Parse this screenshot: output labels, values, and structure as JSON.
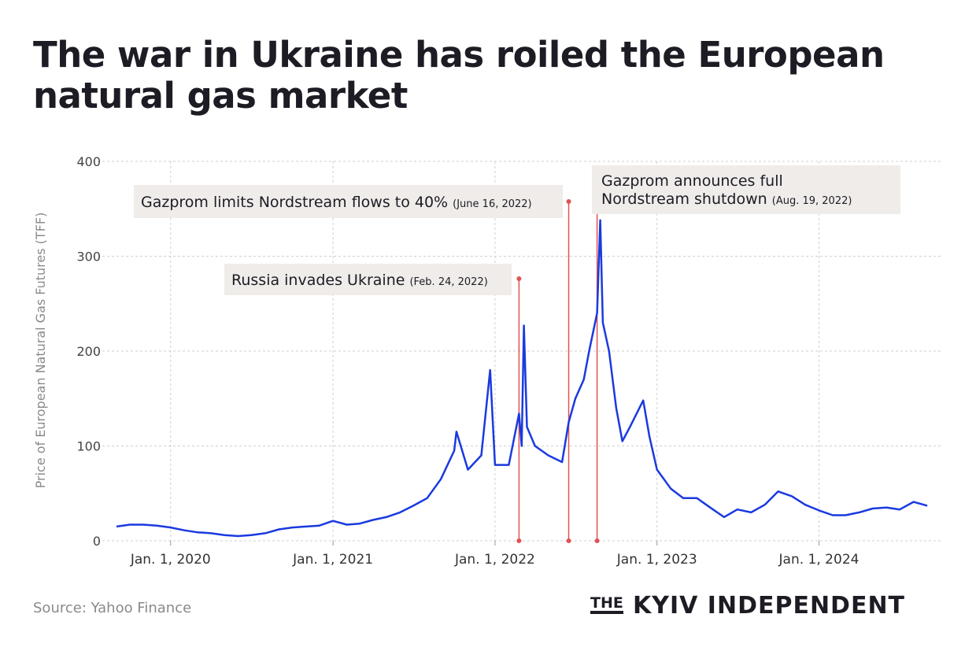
{
  "title": "The war in Ukraine has roiled the European natural gas market",
  "source": "Source: Yahoo Finance",
  "brand": {
    "prefix": "THE",
    "name": "KYIV INDEPENDENT"
  },
  "colors": {
    "line": "#1a3adf",
    "annotation": "#e05252",
    "grid": "#cfcfcf",
    "label_bg": "#efecea"
  },
  "chart_data": {
    "type": "line",
    "ylabel": "Price of European Natural Gas Futures (TFF)",
    "xlabel": "",
    "ylim": [
      0,
      400
    ],
    "yticks": [
      0,
      100,
      200,
      300,
      400
    ],
    "xlim": [
      "2019-09-01",
      "2024-10-01"
    ],
    "xticks": [
      {
        "date": "2020-01-01",
        "label": "Jan. 1, 2020"
      },
      {
        "date": "2021-01-01",
        "label": "Jan. 1, 2021"
      },
      {
        "date": "2022-01-01",
        "label": "Jan. 1, 2022"
      },
      {
        "date": "2023-01-01",
        "label": "Jan. 1, 2023"
      },
      {
        "date": "2024-01-01",
        "label": "Jan. 1, 2024"
      }
    ],
    "grid": true,
    "series": [
      {
        "points": [
          [
            "2019-09-01",
            15
          ],
          [
            "2019-10-01",
            17
          ],
          [
            "2019-11-01",
            17
          ],
          [
            "2019-12-01",
            16
          ],
          [
            "2020-01-01",
            14
          ],
          [
            "2020-02-01",
            11
          ],
          [
            "2020-03-01",
            9
          ],
          [
            "2020-04-01",
            8
          ],
          [
            "2020-05-01",
            6
          ],
          [
            "2020-06-01",
            5
          ],
          [
            "2020-07-01",
            6
          ],
          [
            "2020-08-01",
            8
          ],
          [
            "2020-09-01",
            12
          ],
          [
            "2020-10-01",
            14
          ],
          [
            "2020-11-01",
            15
          ],
          [
            "2020-12-01",
            16
          ],
          [
            "2021-01-01",
            21
          ],
          [
            "2021-02-01",
            17
          ],
          [
            "2021-03-01",
            18
          ],
          [
            "2021-04-01",
            22
          ],
          [
            "2021-05-01",
            25
          ],
          [
            "2021-06-01",
            30
          ],
          [
            "2021-07-01",
            37
          ],
          [
            "2021-08-01",
            45
          ],
          [
            "2021-09-01",
            65
          ],
          [
            "2021-10-01",
            95
          ],
          [
            "2021-10-06",
            115
          ],
          [
            "2021-11-01",
            75
          ],
          [
            "2021-12-01",
            90
          ],
          [
            "2021-12-21",
            180
          ],
          [
            "2022-01-01",
            80
          ],
          [
            "2022-02-01",
            80
          ],
          [
            "2022-02-24",
            134
          ],
          [
            "2022-03-02",
            100
          ],
          [
            "2022-03-07",
            227
          ],
          [
            "2022-03-14",
            120
          ],
          [
            "2022-04-01",
            100
          ],
          [
            "2022-05-01",
            90
          ],
          [
            "2022-06-01",
            83
          ],
          [
            "2022-06-16",
            125
          ],
          [
            "2022-07-01",
            150
          ],
          [
            "2022-07-20",
            170
          ],
          [
            "2022-08-01",
            200
          ],
          [
            "2022-08-19",
            240
          ],
          [
            "2022-08-26",
            338
          ],
          [
            "2022-09-01",
            230
          ],
          [
            "2022-09-15",
            200
          ],
          [
            "2022-10-01",
            140
          ],
          [
            "2022-10-15",
            105
          ],
          [
            "2022-11-01",
            120
          ],
          [
            "2022-12-01",
            148
          ],
          [
            "2022-12-15",
            110
          ],
          [
            "2023-01-01",
            75
          ],
          [
            "2023-02-01",
            55
          ],
          [
            "2023-03-01",
            45
          ],
          [
            "2023-04-01",
            45
          ],
          [
            "2023-05-01",
            35
          ],
          [
            "2023-06-01",
            25
          ],
          [
            "2023-07-01",
            33
          ],
          [
            "2023-08-01",
            30
          ],
          [
            "2023-09-01",
            38
          ],
          [
            "2023-10-01",
            52
          ],
          [
            "2023-11-01",
            47
          ],
          [
            "2023-12-01",
            38
          ],
          [
            "2024-01-01",
            32
          ],
          [
            "2024-02-01",
            27
          ],
          [
            "2024-03-01",
            27
          ],
          [
            "2024-04-01",
            30
          ],
          [
            "2024-05-01",
            34
          ],
          [
            "2024-06-01",
            35
          ],
          [
            "2024-07-01",
            33
          ],
          [
            "2024-08-01",
            41
          ],
          [
            "2024-09-01",
            37
          ]
        ]
      }
    ],
    "annotations": [
      {
        "date": "2022-02-24",
        "text": "Russia invades Ukraine",
        "date_text": "(Feb. 24, 2022)"
      },
      {
        "date": "2022-06-16",
        "text": "Gazprom limits Nordstream flows to 40%",
        "date_text": "(June 16, 2022)"
      },
      {
        "date": "2022-08-19",
        "text_line1": "Gazprom announces full",
        "text_line2": "Nordstream shutdown",
        "date_text": "(Aug. 19, 2022)"
      }
    ]
  }
}
